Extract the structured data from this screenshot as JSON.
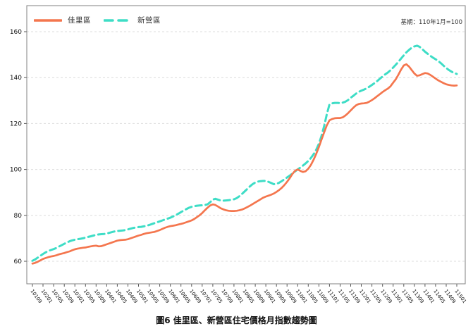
{
  "legend": {
    "items": [
      {
        "key": "jiali",
        "label": "佳里區",
        "color": "#f4764e",
        "style": "solid"
      },
      {
        "key": "xinying",
        "label": "新營區",
        "color": "#3eddc6",
        "style": "dashed"
      }
    ]
  },
  "chart": {
    "base_note": "基期：110年1月=100",
    "caption": "圖6 佳里區、新營區住宅價格月指數趨勢圖"
  },
  "chart_data": {
    "type": "line",
    "title": "圖6 佳里區、新營區住宅價格月指數趨勢圖",
    "base_note": "基期：110年1月=100",
    "xlabel": "",
    "ylabel": "",
    "y_ticks": [
      60,
      80,
      100,
      120,
      140,
      160
    ],
    "ylim": [
      50,
      171
    ],
    "grid": "horizontal-dashed",
    "legend_position": "top-left",
    "x_tick_every": 4,
    "x": [
      "10109",
      "10110",
      "10111",
      "10112",
      "10201",
      "10202",
      "10203",
      "10204",
      "10205",
      "10206",
      "10207",
      "10208",
      "10209",
      "10210",
      "10211",
      "10212",
      "10301",
      "10302",
      "10303",
      "10304",
      "10305",
      "10306",
      "10307",
      "10308",
      "10309",
      "10310",
      "10311",
      "10312",
      "10401",
      "10402",
      "10403",
      "10404",
      "10405",
      "10406",
      "10407",
      "10408",
      "10409",
      "10410",
      "10411",
      "10412",
      "10501",
      "10502",
      "10503",
      "10504",
      "10505",
      "10506",
      "10507",
      "10508",
      "10509",
      "10510",
      "10511",
      "10512",
      "10601",
      "10602",
      "10603",
      "10604",
      "10605",
      "10606",
      "10607",
      "10608",
      "10609",
      "10610",
      "10611",
      "10612",
      "10701",
      "10702",
      "10703",
      "10704",
      "10705",
      "10706",
      "10707",
      "10708",
      "10709",
      "10710",
      "10711",
      "10712",
      "10801",
      "10802",
      "10803",
      "10804",
      "10805",
      "10806",
      "10807",
      "10808",
      "10809",
      "10810",
      "10811",
      "10812",
      "10901",
      "10902",
      "10903",
      "10904",
      "10905",
      "10906",
      "10907",
      "10908",
      "10909",
      "10910",
      "10911",
      "10912",
      "11001",
      "11002",
      "11003",
      "11004",
      "11005",
      "11006",
      "11007",
      "11008",
      "11009",
      "11010",
      "11011",
      "11012",
      "11101",
      "11102",
      "11103",
      "11104",
      "11105",
      "11106",
      "11107",
      "11108",
      "11109",
      "11110",
      "11111",
      "11112",
      "11201",
      "11202",
      "11203",
      "11204",
      "11205",
      "11206",
      "11207",
      "11208",
      "11209",
      "11210",
      "11211",
      "11212",
      "11301",
      "11302",
      "11303",
      "11304",
      "11305",
      "11306",
      "11307",
      "11308",
      "11309",
      "11310",
      "11311",
      "11312",
      "11401",
      "11402",
      "11403",
      "11404",
      "11405",
      "11406",
      "11407",
      "11408",
      "11409",
      "11410",
      "11411",
      "11412",
      "11501"
    ],
    "series": [
      {
        "key": "jiali",
        "name": "佳里區",
        "color": "#f4764e",
        "dash": "solid",
        "values": [
          59.0,
          59.3,
          59.8,
          60.4,
          61.0,
          61.4,
          61.8,
          62.1,
          62.3,
          62.6,
          63.0,
          63.3,
          63.6,
          64.0,
          64.3,
          64.8,
          65.2,
          65.5,
          65.7,
          65.9,
          66.0,
          66.3,
          66.5,
          66.7,
          66.8,
          66.5,
          66.6,
          67.0,
          67.4,
          67.8,
          68.2,
          68.6,
          69.0,
          69.2,
          69.3,
          69.4,
          69.6,
          70.0,
          70.4,
          70.8,
          71.2,
          71.5,
          71.9,
          72.2,
          72.4,
          72.6,
          72.8,
          73.2,
          73.6,
          74.1,
          74.6,
          75.0,
          75.3,
          75.5,
          75.7,
          76.0,
          76.3,
          76.6,
          77.0,
          77.4,
          77.8,
          78.4,
          79.2,
          80.0,
          81.0,
          82.2,
          83.3,
          84.3,
          84.8,
          84.5,
          83.8,
          83.1,
          82.6,
          82.2,
          82.0,
          81.9,
          81.9,
          82.0,
          82.2,
          82.5,
          83.0,
          83.6,
          84.2,
          84.9,
          85.6,
          86.3,
          87.0,
          87.7,
          88.2,
          88.6,
          89.0,
          89.5,
          90.2,
          91.0,
          92.0,
          93.2,
          94.6,
          96.2,
          98.0,
          99.4,
          100.0,
          99.4,
          98.9,
          99.2,
          100.3,
          102.0,
          104.2,
          106.8,
          109.8,
          113.0,
          116.2,
          119.2,
          121.4,
          122.0,
          122.3,
          122.4,
          122.4,
          122.7,
          123.5,
          124.5,
          125.7,
          126.9,
          127.9,
          128.5,
          128.7,
          128.8,
          129.0,
          129.5,
          130.2,
          131.0,
          131.9,
          132.8,
          133.7,
          134.5,
          135.2,
          136.2,
          137.8,
          139.3,
          141.3,
          143.5,
          145.3,
          145.8,
          144.8,
          143.3,
          141.8,
          140.8,
          141.0,
          141.5,
          142.0,
          141.8,
          141.2,
          140.4,
          139.6,
          138.8,
          138.2,
          137.6,
          137.1,
          136.8,
          136.6,
          136.5,
          136.6
        ]
      },
      {
        "key": "xinying",
        "name": "新營區",
        "color": "#3eddc6",
        "dash": "dashed",
        "values": [
          60.2,
          60.8,
          61.6,
          62.4,
          63.2,
          63.9,
          64.5,
          64.9,
          65.3,
          65.8,
          66.4,
          67.0,
          67.6,
          68.2,
          68.7,
          69.1,
          69.4,
          69.6,
          69.8,
          70.0,
          70.3,
          70.6,
          70.9,
          71.2,
          71.5,
          71.7,
          71.8,
          71.9,
          72.1,
          72.4,
          72.7,
          73.0,
          73.2,
          73.3,
          73.4,
          73.6,
          73.9,
          74.2,
          74.5,
          74.7,
          74.9,
          75.0,
          75.2,
          75.5,
          75.8,
          76.2,
          76.6,
          77.0,
          77.4,
          77.8,
          78.2,
          78.6,
          79.0,
          79.5,
          80.1,
          80.7,
          81.4,
          82.1,
          82.7,
          83.3,
          83.7,
          84.0,
          84.2,
          84.3,
          84.4,
          84.5,
          84.8,
          85.7,
          86.9,
          87.2,
          86.8,
          86.5,
          86.4,
          86.5,
          86.6,
          86.8,
          87.0,
          87.5,
          88.3,
          89.3,
          90.4,
          91.5,
          92.6,
          93.6,
          94.3,
          94.7,
          94.9,
          95.0,
          95.0,
          94.6,
          94.1,
          93.6,
          93.7,
          94.2,
          94.9,
          95.7,
          96.5,
          97.3,
          98.2,
          99.1,
          100.0,
          100.8,
          101.7,
          102.6,
          103.7,
          105.0,
          106.6,
          108.6,
          111.2,
          114.6,
          119.0,
          124.0,
          128.3,
          128.8,
          129.0,
          129.0,
          128.9,
          129.1,
          129.5,
          130.2,
          131.2,
          132.1,
          133.0,
          133.8,
          134.3,
          134.8,
          135.3,
          136.0,
          136.8,
          137.6,
          138.5,
          139.5,
          140.5,
          141.4,
          142.2,
          143.2,
          144.4,
          145.6,
          146.9,
          148.3,
          149.7,
          151.0,
          152.1,
          153.0,
          153.6,
          153.9,
          153.4,
          152.4,
          151.3,
          150.4,
          149.5,
          148.7,
          148.0,
          147.2,
          146.3,
          145.2,
          144.2,
          143.3,
          142.6,
          142.0,
          141.6
        ]
      }
    ]
  }
}
